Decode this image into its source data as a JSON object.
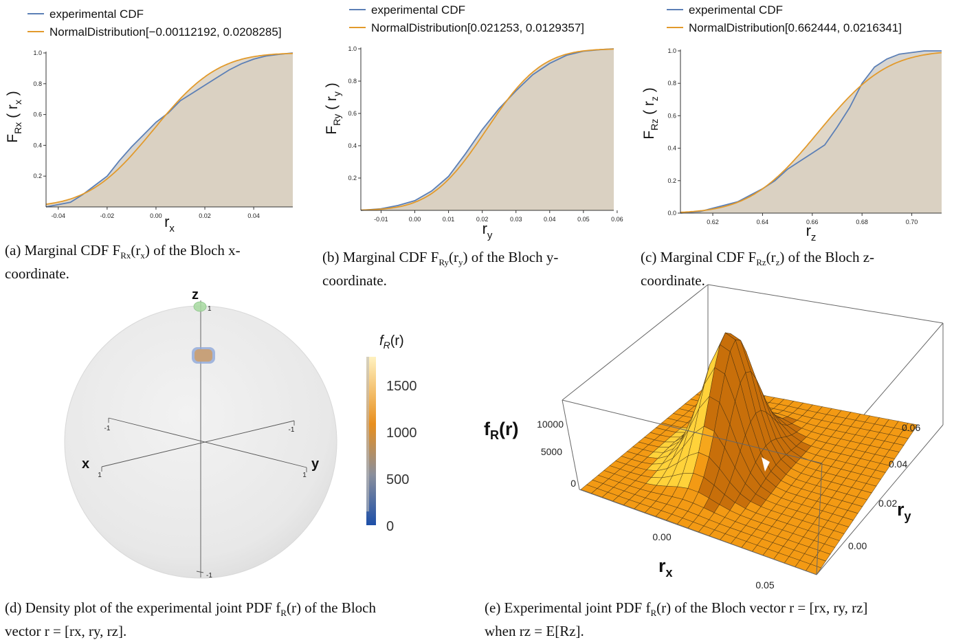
{
  "chart_data": [
    {
      "type": "line",
      "panel": "a",
      "legend": [
        "experimental CDF",
        "NormalDistribution[−0.00112192, 0.0208285]"
      ],
      "legend_placement": "top-left",
      "xlabel": "r",
      "xlabel_sub": "x",
      "ylabel": "F",
      "ylabel_sub": "Rx",
      "ylabel_arg": "r",
      "ylabel_arg_sub": "x",
      "xlim": [
        -0.045,
        0.056
      ],
      "ylim": [
        0,
        1
      ],
      "xticks": [
        "-0.04",
        "-0.02",
        "0.00",
        "0.02",
        "0.04"
      ],
      "xtick_values": [
        -0.04,
        -0.02,
        0.0,
        0.02,
        0.04
      ],
      "yticks": [
        "0.2",
        "0.4",
        "0.6",
        "0.8",
        "1.0"
      ],
      "ytick_values": [
        0.2,
        0.4,
        0.6,
        0.8,
        1.0
      ],
      "normal": {
        "mean": -0.00112192,
        "sd": 0.0208285
      },
      "series": [
        {
          "name": "experimental CDF",
          "color": "#5b7fb6",
          "x": [
            -0.045,
            -0.035,
            -0.03,
            -0.025,
            -0.02,
            -0.015,
            -0.01,
            -0.005,
            0.0,
            0.005,
            0.01,
            0.015,
            0.02,
            0.025,
            0.03,
            0.035,
            0.04,
            0.045,
            0.05,
            0.056
          ],
          "y": [
            0.0,
            0.03,
            0.08,
            0.14,
            0.2,
            0.3,
            0.39,
            0.47,
            0.55,
            0.61,
            0.69,
            0.74,
            0.79,
            0.84,
            0.89,
            0.93,
            0.96,
            0.98,
            0.99,
            1.0
          ]
        },
        {
          "name": "NormalDistribution[−0.00112192, 0.0208285]",
          "color": "#e29a2b"
        }
      ]
    },
    {
      "type": "line",
      "panel": "b",
      "legend": [
        "experimental CDF",
        "NormalDistribution[0.021253, 0.0129357]"
      ],
      "legend_placement": "top-left",
      "xlabel": "r",
      "xlabel_sub": "y",
      "ylabel": "F",
      "ylabel_sub": "Ry",
      "ylabel_arg": "r",
      "ylabel_arg_sub": "y",
      "xlim": [
        -0.016,
        0.059
      ],
      "ylim": [
        0,
        1
      ],
      "xticks": [
        "-0.01",
        "0.00",
        "0.01",
        "0.02",
        "0.03",
        "0.04",
        "0.05",
        "0.06"
      ],
      "xtick_values": [
        -0.01,
        0.0,
        0.01,
        0.02,
        0.03,
        0.04,
        0.05,
        0.06
      ],
      "yticks": [
        "0.2",
        "0.4",
        "0.6",
        "0.8",
        "1.0"
      ],
      "ytick_values": [
        0.2,
        0.4,
        0.6,
        0.8,
        1.0
      ],
      "normal": {
        "mean": 0.021253,
        "sd": 0.0129357
      },
      "series": [
        {
          "name": "experimental CDF",
          "color": "#5b7fb6",
          "x": [
            -0.016,
            -0.01,
            -0.005,
            0.0,
            0.005,
            0.01,
            0.015,
            0.02,
            0.025,
            0.03,
            0.035,
            0.04,
            0.045,
            0.05,
            0.055,
            0.059
          ],
          "y": [
            0.0,
            0.01,
            0.03,
            0.06,
            0.12,
            0.21,
            0.35,
            0.5,
            0.63,
            0.74,
            0.84,
            0.91,
            0.96,
            0.985,
            0.995,
            1.0
          ]
        },
        {
          "name": "NormalDistribution[0.021253, 0.0129357]",
          "color": "#e29a2b"
        }
      ]
    },
    {
      "type": "line",
      "panel": "c",
      "legend": [
        "experimental CDF",
        "NormalDistribution[0.662444, 0.0216341]"
      ],
      "legend_placement": "top-left",
      "xlabel": "r",
      "xlabel_sub": "z",
      "ylabel": "F",
      "ylabel_sub": "Rz",
      "ylabel_arg": "r",
      "ylabel_arg_sub": "z",
      "xlim": [
        0.607,
        0.712
      ],
      "ylim": [
        0,
        1
      ],
      "xticks": [
        "0.62",
        "0.64",
        "0.66",
        "0.68",
        "0.70"
      ],
      "xtick_values": [
        0.62,
        0.64,
        0.66,
        0.68,
        0.7
      ],
      "yticks": [
        "0.0",
        "0.2",
        "0.4",
        "0.6",
        "0.8",
        "1.0"
      ],
      "ytick_values": [
        0.0,
        0.2,
        0.4,
        0.6,
        0.8,
        1.0
      ],
      "normal": {
        "mean": 0.662444,
        "sd": 0.0216341
      },
      "series": [
        {
          "name": "experimental CDF",
          "color": "#5b7fb6",
          "x": [
            0.607,
            0.615,
            0.62,
            0.625,
            0.63,
            0.635,
            0.64,
            0.645,
            0.65,
            0.655,
            0.66,
            0.665,
            0.67,
            0.675,
            0.68,
            0.685,
            0.69,
            0.695,
            0.7,
            0.705,
            0.712
          ],
          "y": [
            0.0,
            0.01,
            0.03,
            0.05,
            0.07,
            0.11,
            0.15,
            0.2,
            0.27,
            0.32,
            0.37,
            0.42,
            0.53,
            0.65,
            0.8,
            0.9,
            0.95,
            0.98,
            0.99,
            1.0,
            1.0
          ]
        },
        {
          "name": "NormalDistribution[0.662444, 0.0216341]",
          "color": "#e29a2b"
        }
      ]
    },
    {
      "type": "heatmap",
      "panel": "d",
      "axes": {
        "z": "z",
        "x": "x",
        "y": "y"
      },
      "tick_labels": {
        "z_pos": "1",
        "z_neg": "-1",
        "x_pos": "1",
        "x_neg": "-1",
        "y_pos": "1",
        "y_neg": "-1"
      },
      "colorbar": {
        "title": "f",
        "title_sub": "R",
        "title_arg": "(r)",
        "ticks": [
          "0",
          "500",
          "1000",
          "1500"
        ],
        "tick_values": [
          0,
          500,
          1000,
          1500
        ],
        "max": 1800,
        "colors": [
          "#1d4fa8",
          "#8a8f9c",
          "#e88f1e",
          "#fff2c0"
        ]
      }
    },
    {
      "type": "surface",
      "panel": "e",
      "zlabel": "f",
      "zlabel_sub": "R",
      "zlabel_arg": "(r)",
      "xlabel": "r",
      "xlabel_sub": "x",
      "ylabel": "r",
      "ylabel_sub": "y",
      "zticks": [
        "0",
        "5000",
        "10000"
      ],
      "ztick_values": [
        0,
        5000,
        10000
      ],
      "xticks": [
        "0.00",
        "0.05"
      ],
      "xtick_values": [
        0.0,
        0.05
      ],
      "yticks": [
        "0.00",
        "0.02",
        "0.04",
        "0.06"
      ],
      "ytick_values": [
        0.0,
        0.02,
        0.04,
        0.06
      ],
      "peak": {
        "rx": -0.001,
        "ry": 0.021,
        "value": 11500
      }
    }
  ],
  "captions": {
    "a_main": "(a) Marginal CDF F",
    "a_sub": "Rx",
    "a_arg": "(r",
    "a_argsub": "x",
    "a_rest": ") of the Bloch x-",
    "a_line2": "coordinate.",
    "b_main": "(b) Marginal CDF F",
    "b_sub": "Ry",
    "b_arg": "(r",
    "b_argsub": "y",
    "b_rest": ") of the Bloch y-",
    "b_line2": "coordinate.",
    "c_main": "(c) Marginal CDF F",
    "c_sub": "Rz",
    "c_arg": "(r",
    "c_argsub": "z",
    "c_rest": ") of the Bloch z-",
    "c_line2": "coordinate.",
    "d_line1": "(d) Density plot of the experimental joint PDF f",
    "d_sub": "R",
    "d_arg": "(r) of the Bloch",
    "d_line2": "vector r = [r",
    "d_line2_rest": "x, ry, rz].",
    "e_line1": "(e) Experimental joint PDF f",
    "e_sub": "R",
    "e_arg": "(r) of the Bloch vector r = [rx, ry, rz]",
    "e_line2": "when rz = E[Rz]."
  }
}
